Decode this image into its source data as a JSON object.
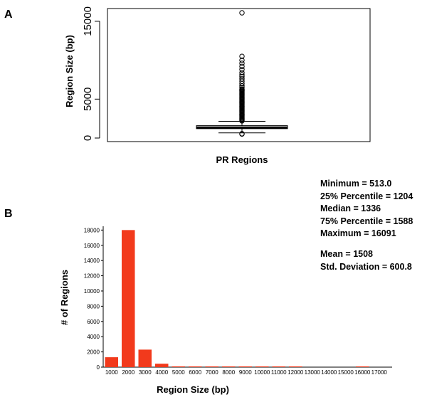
{
  "panels": {
    "a_label": "A",
    "b_label": "B"
  },
  "chart_data": [
    {
      "type": "boxplot",
      "ylabel": "Region Size (bp)",
      "xlabel": "PR Regions",
      "ylim": [
        0,
        16091
      ],
      "y_ticks": [
        0,
        5000,
        15000
      ],
      "y_tick_labels": [
        "0",
        "5000",
        "15000"
      ],
      "box": {
        "min_whisker": 660,
        "q1": 1204,
        "median": 1336,
        "q3": 1588,
        "max_whisker": 2150
      },
      "outliers_high": [
        2200,
        2300,
        2400,
        2500,
        2600,
        2700,
        2800,
        2900,
        3000,
        3100,
        3200,
        3300,
        3400,
        3500,
        3600,
        3700,
        3800,
        3900,
        4000,
        4100,
        4200,
        4300,
        4400,
        4500,
        4600,
        4700,
        4800,
        4900,
        5000,
        5100,
        5200,
        5300,
        5400,
        5500,
        5600,
        5700,
        5800,
        5900,
        6000,
        6100,
        6200,
        6300,
        6500,
        6700,
        7000,
        7300,
        7600,
        7900,
        8100,
        8400,
        8800,
        9200,
        9600,
        10000,
        10500,
        16091
      ],
      "outliers_low": [
        513,
        560
      ]
    },
    {
      "type": "bar",
      "ylabel": "# of Regions",
      "xlabel": "Region Size (bp)",
      "categories": [
        "1000",
        "2000",
        "3000",
        "4000",
        "5000",
        "6000",
        "7000",
        "8000",
        "9000",
        "10000",
        "11000",
        "12000",
        "13000",
        "14000",
        "15000",
        "16000",
        "17000"
      ],
      "values": [
        1300,
        18000,
        2300,
        450,
        100,
        40,
        20,
        10,
        5,
        3,
        2,
        1,
        0,
        0,
        0,
        1,
        0
      ],
      "ylim": [
        0,
        18500
      ],
      "y_ticks": [
        "0",
        "2000",
        "4000",
        "6000",
        "8000",
        "10000",
        "12000",
        "14000",
        "16000",
        "18000"
      ],
      "bar_color": "#f23a1c"
    }
  ],
  "stats": {
    "min": "Minimum = 513.0",
    "p25": "25% Percentile = 1204",
    "median": "Median = 1336",
    "p75": "75% Percentile = 1588",
    "max": "Maximum = 16091",
    "mean": "Mean = 1508",
    "sd": "Std. Deviation = 600.8"
  }
}
